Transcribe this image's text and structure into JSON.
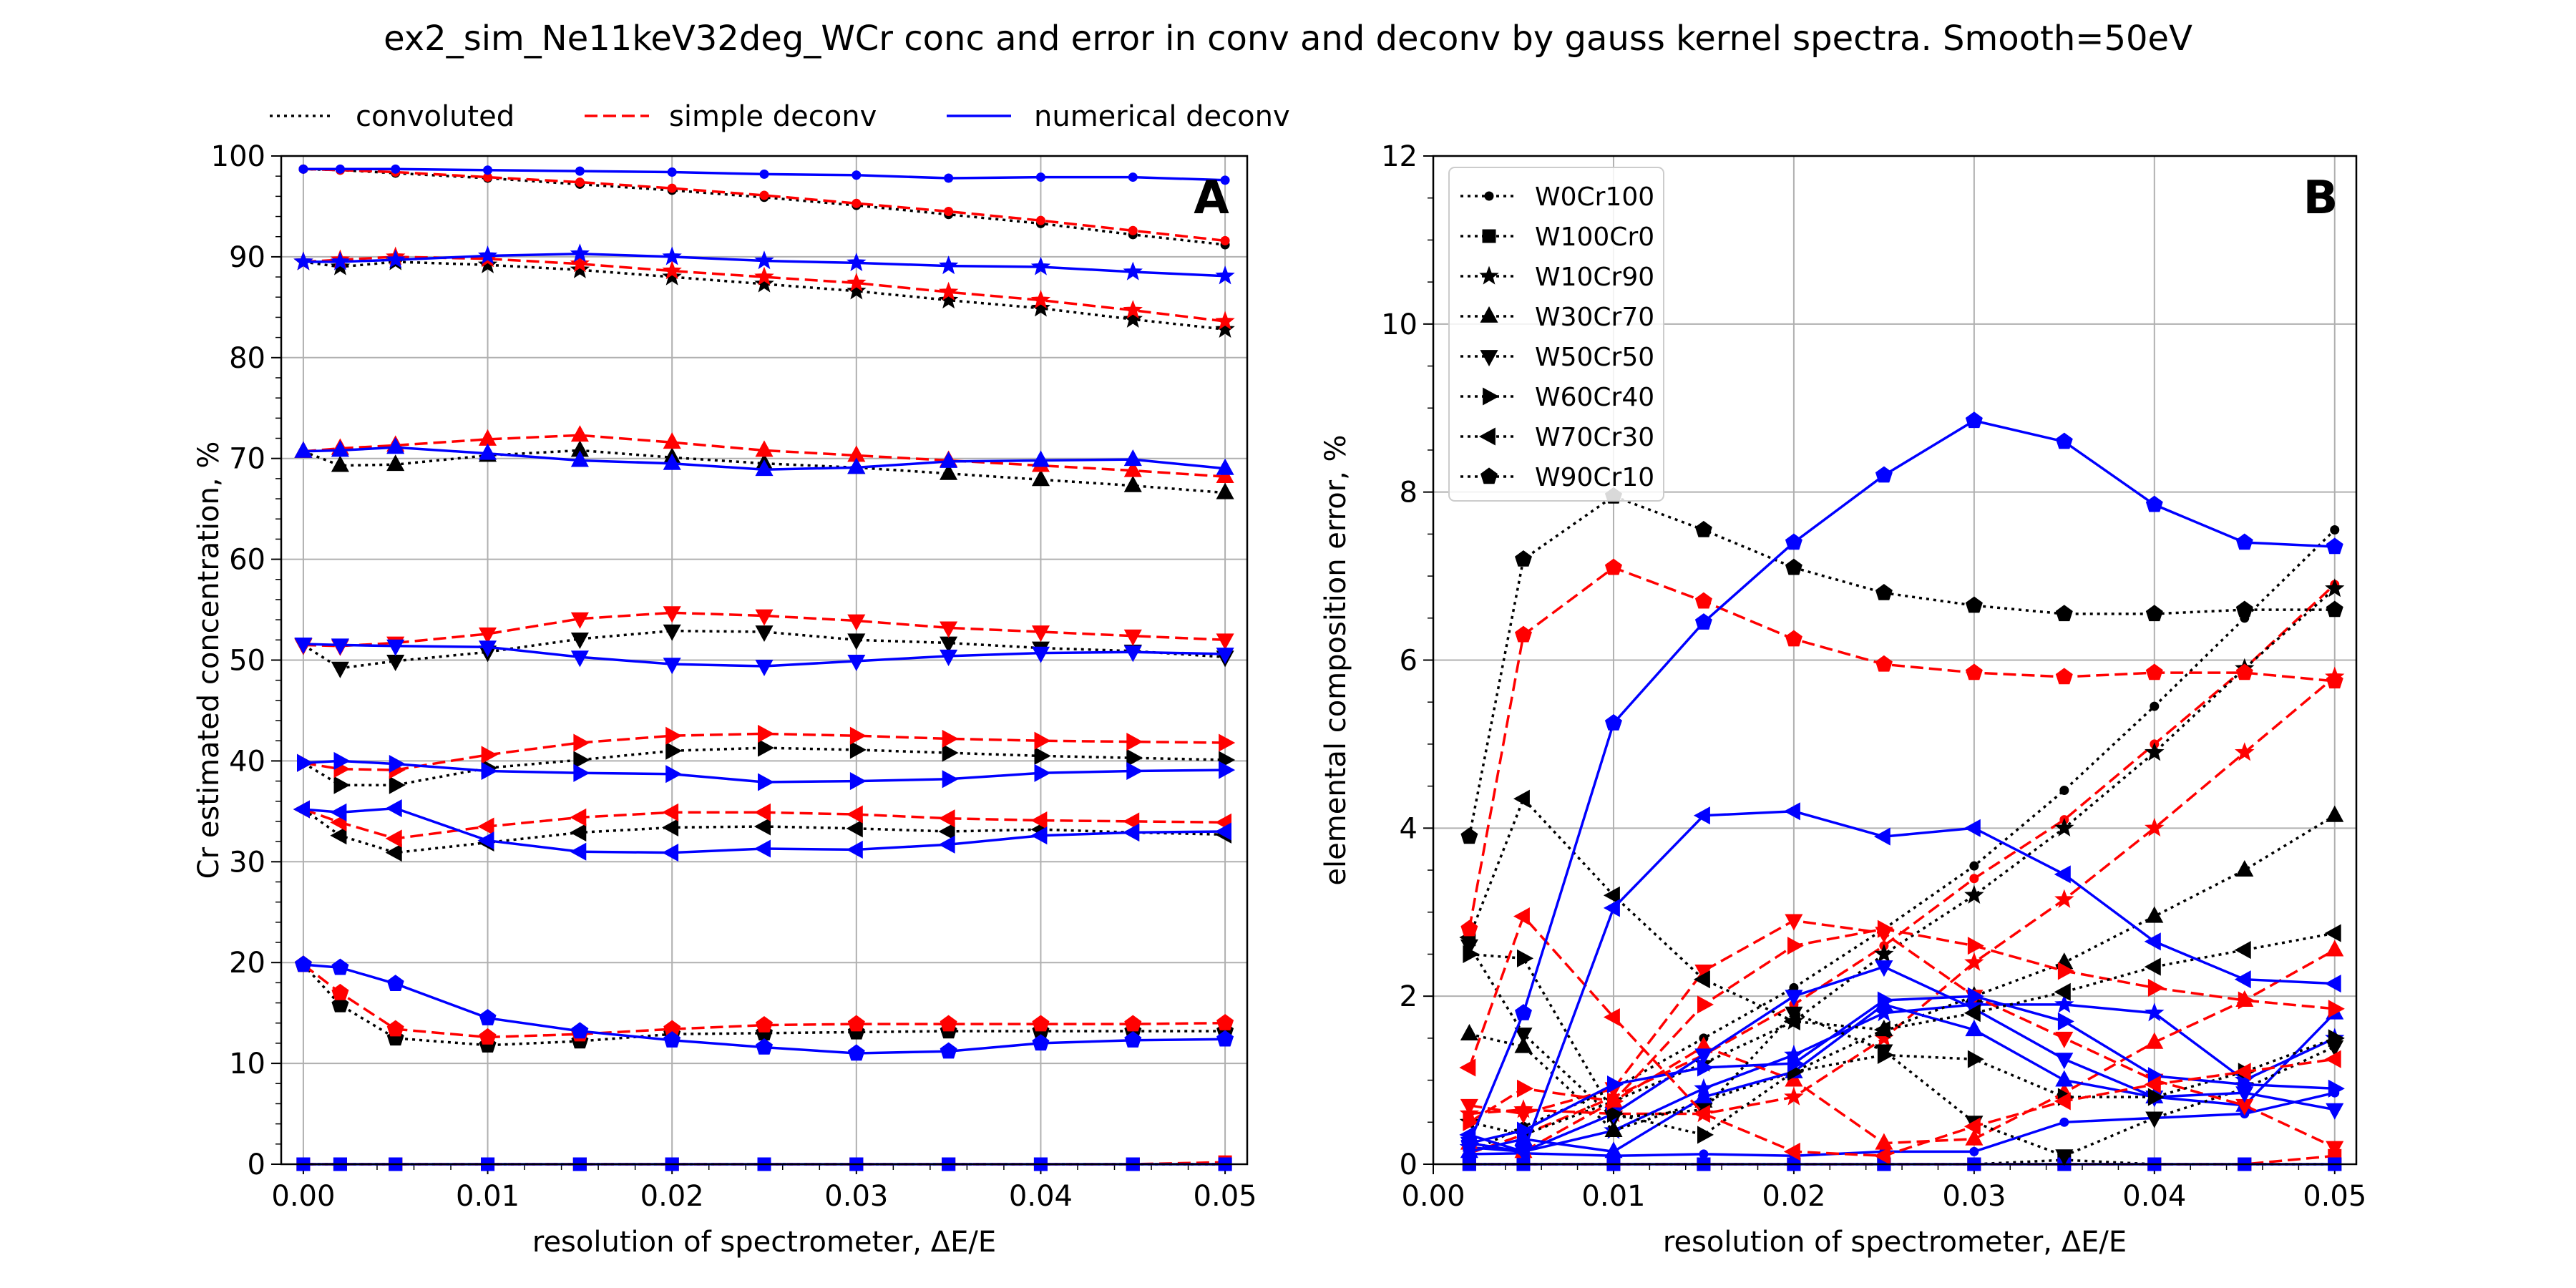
{
  "suptitle": "ex2_sim_Ne11keV32deg_WCr conc and error in conv and deconv by gauss kernel spectra. Smooth=50eV",
  "legend_top": [
    {
      "label": "convoluted",
      "style": "dotted",
      "color": "#000000"
    },
    {
      "label": "simple deconv",
      "style": "dashed",
      "color": "#ff0000"
    },
    {
      "label": "numerical deconv",
      "style": "solid",
      "color": "#0000ff"
    }
  ],
  "chart_data": [
    {
      "type": "line",
      "panel_label": "A",
      "xlabel": "resolution of spectrometer, ΔE/E",
      "ylabel": "Cr estimated concentration, %",
      "xlim": [
        -0.0012,
        0.0512
      ],
      "ylim": [
        0,
        100
      ],
      "xticks": [
        "0.00",
        "0.01",
        "0.02",
        "0.03",
        "0.04",
        "0.05"
      ],
      "yticks": [
        "0",
        "10",
        "20",
        "30",
        "40",
        "50",
        "60",
        "70",
        "80",
        "90",
        "100"
      ],
      "grid": true,
      "x": [
        0.0,
        0.002,
        0.005,
        0.01,
        0.015,
        0.02,
        0.025,
        0.03,
        0.035,
        0.04,
        0.045,
        0.05
      ],
      "series": [
        {
          "marker": "o",
          "conv": [
            98.7,
            98.6,
            98.3,
            97.8,
            97.2,
            96.6,
            95.9,
            95.1,
            94.2,
            93.3,
            92.2,
            91.2
          ],
          "simple": [
            98.7,
            98.6,
            98.4,
            97.9,
            97.4,
            96.8,
            96.1,
            95.3,
            94.5,
            93.6,
            92.6,
            91.6
          ],
          "numerical": [
            98.7,
            98.7,
            98.7,
            98.6,
            98.5,
            98.4,
            98.2,
            98.1,
            97.8,
            97.9,
            97.9,
            97.6
          ]
        },
        {
          "marker": "s",
          "conv": [
            0,
            0,
            0,
            0,
            0,
            0,
            0,
            0,
            0,
            0,
            0,
            0
          ],
          "simple": [
            0,
            0,
            0,
            0,
            0,
            0,
            0,
            0,
            0,
            0,
            0,
            0.2
          ],
          "numerical": [
            0,
            0,
            0,
            0,
            0,
            0,
            0,
            0,
            0,
            0,
            0,
            0
          ]
        },
        {
          "marker": "*",
          "conv": [
            89.5,
            89.0,
            89.5,
            89.2,
            88.7,
            88.0,
            87.3,
            86.6,
            85.7,
            84.9,
            83.8,
            82.8
          ],
          "simple": [
            89.5,
            89.7,
            90.0,
            89.8,
            89.3,
            88.6,
            88.0,
            87.4,
            86.5,
            85.7,
            84.7,
            83.6
          ],
          "numerical": [
            89.5,
            89.5,
            89.7,
            90.1,
            90.3,
            90.0,
            89.6,
            89.4,
            89.1,
            89.0,
            88.5,
            88.1
          ]
        },
        {
          "marker": "^",
          "conv": [
            70.7,
            69.3,
            69.4,
            70.3,
            70.8,
            70.1,
            69.5,
            69.1,
            68.5,
            67.9,
            67.3,
            66.6
          ],
          "simple": [
            70.7,
            71.0,
            71.3,
            71.9,
            72.3,
            71.6,
            70.8,
            70.3,
            69.8,
            69.3,
            68.8,
            68.2
          ],
          "numerical": [
            70.7,
            70.8,
            71.1,
            70.5,
            69.8,
            69.5,
            68.9,
            69.1,
            69.7,
            69.8,
            69.9,
            69.0
          ]
        },
        {
          "marker": "v",
          "conv": [
            51.5,
            49.2,
            49.9,
            50.8,
            52.1,
            52.9,
            52.8,
            52.0,
            51.7,
            51.2,
            50.9,
            50.3
          ],
          "simple": [
            51.5,
            51.4,
            51.7,
            52.6,
            54.1,
            54.7,
            54.4,
            53.9,
            53.2,
            52.8,
            52.4,
            52.0
          ],
          "numerical": [
            51.6,
            51.5,
            51.4,
            51.3,
            50.3,
            49.6,
            49.4,
            49.9,
            50.4,
            50.7,
            50.8,
            50.6
          ]
        },
        {
          "marker": ">",
          "conv": [
            39.8,
            37.6,
            37.6,
            39.3,
            40.1,
            41.0,
            41.3,
            41.1,
            40.8,
            40.5,
            40.3,
            40.1
          ],
          "simple": [
            39.8,
            39.2,
            39.1,
            40.6,
            41.8,
            42.5,
            42.7,
            42.5,
            42.2,
            42.0,
            41.9,
            41.8
          ],
          "numerical": [
            39.8,
            40.0,
            39.7,
            39.0,
            38.8,
            38.7,
            37.9,
            38.0,
            38.2,
            38.8,
            39.0,
            39.1
          ]
        },
        {
          "marker": "<",
          "conv": [
            35.2,
            32.6,
            30.9,
            31.9,
            32.9,
            33.4,
            33.5,
            33.3,
            33.0,
            33.2,
            32.9,
            32.7
          ],
          "simple": [
            35.2,
            33.9,
            32.3,
            33.5,
            34.4,
            34.9,
            34.9,
            34.7,
            34.3,
            34.1,
            34.0,
            33.9
          ],
          "numerical": [
            35.2,
            34.9,
            35.3,
            32.1,
            31.0,
            30.9,
            31.3,
            31.2,
            31.7,
            32.6,
            32.9,
            33.0
          ]
        },
        {
          "marker": "p",
          "conv": [
            19.8,
            15.8,
            12.5,
            11.8,
            12.2,
            12.9,
            13.0,
            13.1,
            13.2,
            13.2,
            13.2,
            13.2
          ],
          "simple": [
            19.8,
            17.0,
            13.4,
            12.6,
            12.9,
            13.4,
            13.8,
            13.9,
            13.9,
            13.9,
            13.9,
            14.0
          ],
          "numerical": [
            19.8,
            19.5,
            17.9,
            14.5,
            13.2,
            12.3,
            11.6,
            11.0,
            11.2,
            12.0,
            12.3,
            12.4
          ]
        }
      ]
    },
    {
      "type": "line",
      "panel_label": "B",
      "xlabel": "resolution of spectrometer, ΔE/E",
      "ylabel": "elemental composition error, %",
      "xlim": [
        0.0,
        0.0512
      ],
      "ylim": [
        0,
        12
      ],
      "xticks": [
        "0.00",
        "0.01",
        "0.02",
        "0.03",
        "0.04",
        "0.05"
      ],
      "yticks": [
        "0",
        "2",
        "4",
        "6",
        "8",
        "10",
        "12"
      ],
      "grid": true,
      "legend_position": "upper-left",
      "x": [
        0.002,
        0.005,
        0.01,
        0.015,
        0.02,
        0.025,
        0.03,
        0.035,
        0.04,
        0.045,
        0.05
      ],
      "series": [
        {
          "name": "W0Cr100",
          "marker": "o",
          "conv": [
            0.14,
            0.45,
            0.9,
            1.5,
            2.1,
            2.8,
            3.55,
            4.45,
            5.45,
            6.5,
            7.55
          ],
          "simple": [
            0.13,
            0.35,
            0.8,
            1.3,
            1.9,
            2.6,
            3.4,
            4.1,
            5.0,
            5.9,
            6.9
          ],
          "numerical": [
            0.12,
            0.13,
            0.1,
            0.12,
            0.1,
            0.15,
            0.15,
            0.5,
            0.55,
            0.6,
            0.85
          ]
        },
        {
          "name": "W100Cr0",
          "marker": "s",
          "conv": [
            0.0,
            0.0,
            0.0,
            0.0,
            0.0,
            0.0,
            0.0,
            0.05,
            0.0,
            0.0,
            0.0
          ],
          "simple": [
            0.0,
            0.0,
            0.0,
            0.0,
            0.0,
            0.0,
            0.0,
            0.0,
            0.0,
            0.0,
            0.1
          ],
          "numerical": [
            0.0,
            0.0,
            0.0,
            0.0,
            0.0,
            0.0,
            0.0,
            0.0,
            0.0,
            0.0,
            0.0
          ]
        },
        {
          "name": "W10Cr90",
          "marker": "*",
          "conv": [
            0.5,
            0.35,
            0.75,
            1.2,
            1.7,
            2.5,
            3.2,
            4.0,
            4.9,
            5.9,
            6.85
          ],
          "simple": [
            0.6,
            0.65,
            0.6,
            0.6,
            0.8,
            1.5,
            2.4,
            3.15,
            4.0,
            4.9,
            5.8
          ],
          "numerical": [
            0.2,
            0.15,
            0.4,
            0.9,
            1.3,
            1.8,
            1.9,
            1.9,
            1.8,
            1.0,
            1.5
          ]
        },
        {
          "name": "W30Cr70",
          "marker": "^",
          "conv": [
            1.55,
            1.4,
            0.4,
            0.75,
            1.1,
            1.6,
            2.0,
            2.4,
            2.95,
            3.5,
            4.15
          ],
          "simple": [
            0.25,
            0.15,
            0.75,
            1.4,
            1.0,
            0.25,
            0.3,
            0.85,
            1.45,
            1.95,
            2.55
          ],
          "numerical": [
            0.15,
            0.3,
            0.15,
            0.8,
            1.1,
            1.9,
            1.6,
            1.0,
            0.8,
            0.7,
            1.8
          ]
        },
        {
          "name": "W50Cr50",
          "marker": "v",
          "conv": [
            2.6,
            1.55,
            0.55,
            0.65,
            1.8,
            1.35,
            0.5,
            0.1,
            0.55,
            0.9,
            1.4
          ],
          "simple": [
            0.7,
            0.6,
            0.9,
            2.3,
            2.9,
            2.75,
            2.0,
            1.5,
            1.0,
            0.7,
            0.2
          ],
          "numerical": [
            0.25,
            0.15,
            0.6,
            1.3,
            2.0,
            2.35,
            1.85,
            1.25,
            0.8,
            0.85,
            0.65
          ]
        },
        {
          "name": "W60Cr40",
          "marker": ">",
          "conv": [
            2.5,
            2.45,
            0.6,
            0.35,
            1.1,
            1.3,
            1.25,
            0.8,
            0.8,
            1.1,
            1.5
          ],
          "simple": [
            0.5,
            0.9,
            0.75,
            1.9,
            2.6,
            2.8,
            2.6,
            2.3,
            2.1,
            1.95,
            1.85
          ],
          "numerical": [
            0.25,
            0.4,
            0.95,
            1.15,
            1.2,
            1.95,
            2.0,
            1.7,
            1.05,
            0.95,
            0.9
          ]
        },
        {
          "name": "W70Cr30",
          "marker": "<",
          "conv": [
            2.7,
            4.35,
            3.2,
            2.2,
            1.7,
            1.6,
            1.8,
            2.05,
            2.35,
            2.55,
            2.75
          ],
          "simple": [
            1.15,
            2.95,
            1.75,
            0.6,
            0.15,
            0.1,
            0.45,
            0.75,
            0.95,
            1.1,
            1.25
          ],
          "numerical": [
            0.35,
            0.15,
            3.05,
            4.15,
            4.2,
            3.9,
            4.0,
            3.45,
            2.65,
            2.2,
            2.15
          ]
        },
        {
          "name": "W90Cr10",
          "marker": "p",
          "conv": [
            3.9,
            7.2,
            7.95,
            7.55,
            7.1,
            6.8,
            6.65,
            6.55,
            6.55,
            6.6,
            6.6
          ],
          "simple": [
            2.8,
            6.3,
            7.1,
            6.7,
            6.25,
            5.95,
            5.85,
            5.8,
            5.85,
            5.85,
            5.75
          ],
          "numerical": [
            0.25,
            1.8,
            5.25,
            6.45,
            7.4,
            8.2,
            8.85,
            8.6,
            7.85,
            7.4,
            7.35
          ]
        }
      ]
    }
  ]
}
